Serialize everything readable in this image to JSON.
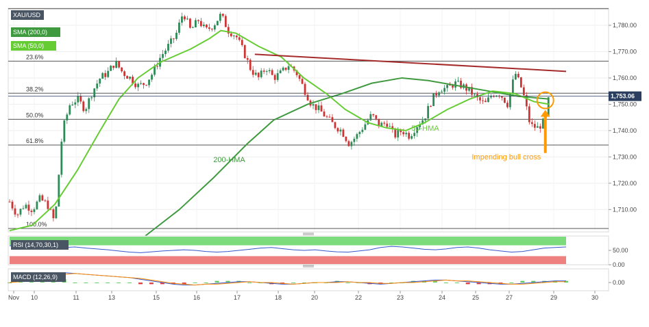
{
  "symbol": "XAU/USD",
  "indicators": {
    "sma200": "SMA (200,0)",
    "sma50": "SMA (50,0)",
    "rsi": "RSI (14,70,30,1)",
    "macd": "MACD (12,26,9)"
  },
  "colors": {
    "hma50": "#66cc33",
    "hma200": "#3f9a3f",
    "trendline": "#a52a2a",
    "candle_up": "#2e8b57",
    "candle_down": "#cc3333",
    "annotation": "#ff9900",
    "rsi_line": "#3355cc",
    "rsi_upper_band": "#7cdc7c",
    "rsi_lower_band": "#ef8080",
    "price_tag": "#2a3f5f"
  },
  "chart_data": {
    "type": "candlestick",
    "x_ticks": [
      "Nov",
      "10",
      "11",
      "13",
      "15",
      "16",
      "17",
      "18",
      "20",
      "22",
      "23",
      "24",
      "25",
      "27",
      "29",
      "30"
    ],
    "y_ticks": [
      1710.0,
      1720.0,
      1730.0,
      1740.0,
      1750.0,
      1760.0,
      1770.0,
      1780.0
    ],
    "ylim": [
      1701.5,
      1786.5
    ],
    "y_tick_labels": [
      "1,710.00",
      "1,720.00",
      "1,730.00",
      "1,740.00",
      "1,750.00",
      "1,760.00",
      "1,770.00",
      "1,780.00"
    ],
    "last_price": 1753.06,
    "last_price_label": "1,753.06",
    "fibonacci": [
      {
        "label": "100.0%",
        "price": 1702.8
      },
      {
        "label": "61.8%",
        "price": 1734.5
      },
      {
        "label": "50.0%",
        "price": 1744.3
      },
      {
        "label": "38.2%",
        "price": 1754.2
      },
      {
        "label": "23.6%",
        "price": 1766.4
      }
    ],
    "top_level": 1786.3,
    "close_path": [
      [
        0,
        1713
      ],
      [
        4,
        1708
      ],
      [
        8,
        1712
      ],
      [
        12,
        1710
      ],
      [
        16,
        1714
      ],
      [
        20,
        1712
      ],
      [
        24,
        1705
      ],
      [
        28,
        1740
      ],
      [
        32,
        1750
      ],
      [
        36,
        1752
      ],
      [
        40,
        1748
      ],
      [
        44,
        1755
      ],
      [
        48,
        1760
      ],
      [
        52,
        1762
      ],
      [
        56,
        1766
      ],
      [
        60,
        1762
      ],
      [
        64,
        1760
      ],
      [
        68,
        1757
      ],
      [
        72,
        1758
      ],
      [
        76,
        1762
      ],
      [
        80,
        1768
      ],
      [
        84,
        1772
      ],
      [
        88,
        1776
      ],
      [
        92,
        1785
      ],
      [
        96,
        1778
      ],
      [
        100,
        1782
      ],
      [
        104,
        1778
      ],
      [
        108,
        1780
      ],
      [
        112,
        1784
      ],
      [
        116,
        1778
      ],
      [
        120,
        1776
      ],
      [
        124,
        1770
      ],
      [
        128,
        1763
      ],
      [
        132,
        1760
      ],
      [
        136,
        1764
      ],
      [
        140,
        1760
      ],
      [
        144,
        1762
      ],
      [
        148,
        1765
      ],
      [
        152,
        1762
      ],
      [
        156,
        1756
      ],
      [
        160,
        1750
      ],
      [
        164,
        1748
      ],
      [
        168,
        1745
      ],
      [
        172,
        1742
      ],
      [
        176,
        1740
      ],
      [
        180,
        1735
      ],
      [
        184,
        1738
      ],
      [
        188,
        1742
      ],
      [
        192,
        1746
      ],
      [
        196,
        1742
      ],
      [
        200,
        1743
      ],
      [
        204,
        1738
      ],
      [
        208,
        1740
      ],
      [
        212,
        1738
      ],
      [
        216,
        1742
      ],
      [
        220,
        1745
      ],
      [
        224,
        1752
      ],
      [
        228,
        1756
      ],
      [
        232,
        1756
      ],
      [
        236,
        1758
      ],
      [
        240,
        1757
      ],
      [
        244,
        1755
      ],
      [
        248,
        1752
      ],
      [
        252,
        1750
      ],
      [
        256,
        1754
      ],
      [
        260,
        1754
      ],
      [
        264,
        1750
      ],
      [
        268,
        1762
      ],
      [
        272,
        1755
      ],
      [
        276,
        1742
      ],
      [
        280,
        1741
      ],
      [
        284,
        1744
      ],
      [
        286,
        1753
      ]
    ],
    "hma50": [
      [
        0,
        1702
      ],
      [
        12,
        1704
      ],
      [
        24,
        1712
      ],
      [
        36,
        1725
      ],
      [
        48,
        1740
      ],
      [
        58,
        1752
      ],
      [
        68,
        1760
      ],
      [
        80,
        1766
      ],
      [
        96,
        1771
      ],
      [
        106,
        1775
      ],
      [
        112,
        1778
      ],
      [
        120,
        1777
      ],
      [
        132,
        1772
      ],
      [
        144,
        1768
      ],
      [
        156,
        1760
      ],
      [
        168,
        1754
      ],
      [
        178,
        1748
      ],
      [
        190,
        1743
      ],
      [
        200,
        1741
      ],
      [
        210,
        1740
      ],
      [
        220,
        1743
      ],
      [
        232,
        1748
      ],
      [
        244,
        1752
      ],
      [
        256,
        1755
      ],
      [
        268,
        1754
      ],
      [
        278,
        1751
      ],
      [
        286,
        1750
      ]
    ],
    "hma200": [
      [
        72,
        1700
      ],
      [
        90,
        1710
      ],
      [
        108,
        1722
      ],
      [
        126,
        1735
      ],
      [
        140,
        1744
      ],
      [
        158,
        1750
      ],
      [
        176,
        1754
      ],
      [
        192,
        1758
      ],
      [
        208,
        1760
      ],
      [
        222,
        1759
      ],
      [
        238,
        1757
      ],
      [
        254,
        1755
      ],
      [
        270,
        1753
      ],
      [
        286,
        1752
      ]
    ],
    "trendline": {
      "start": [
        130,
        1769
      ],
      "end": [
        295,
        1762.5
      ]
    },
    "annotations": [
      {
        "label": "200-HMA",
        "x": 108,
        "y": 1728
      },
      {
        "label": "50-HMA",
        "x": 213,
        "y": 1740
      },
      {
        "label": "Impending bull cross",
        "x": 245,
        "y": 1729
      }
    ],
    "rsi": {
      "ticks": [
        50.0,
        0.0
      ],
      "tick_labels": [
        "50.00",
        "0.00"
      ],
      "upper": 70,
      "lower": 30,
      "values": [
        66,
        64,
        62,
        60,
        58,
        60,
        62,
        58,
        55,
        52,
        48,
        44,
        42,
        45,
        48,
        50,
        52,
        50,
        46,
        44,
        46,
        50,
        54,
        58,
        60,
        56,
        52,
        50,
        52,
        48,
        45,
        44,
        48,
        52,
        60,
        64,
        62,
        58,
        54,
        52,
        55,
        60,
        62,
        58,
        52,
        48,
        44,
        46,
        52,
        58,
        60,
        62
      ]
    },
    "macd": {
      "ticks": [
        0.0
      ],
      "tick_labels": [
        "0.00"
      ],
      "macd_line": [
        0,
        2,
        6,
        10,
        12,
        12,
        11,
        10,
        9,
        8,
        7,
        6,
        4,
        2,
        0,
        -2,
        -3,
        -3,
        -2,
        -1,
        0,
        1,
        1,
        0,
        -1,
        -2,
        -2,
        -1,
        0,
        0,
        1,
        1,
        0,
        -1,
        -2,
        -1,
        0,
        1,
        2,
        3,
        3,
        2,
        1,
        0,
        -1,
        -2,
        -2,
        -1,
        0,
        1,
        2,
        2
      ],
      "signal_line": [
        0,
        1,
        3,
        6,
        9,
        10,
        11,
        10,
        9,
        8,
        7,
        6,
        5,
        3,
        1,
        -1,
        -2,
        -3,
        -2,
        -2,
        -1,
        0,
        1,
        0,
        0,
        -1,
        -2,
        -1,
        0,
        0,
        0,
        1,
        0,
        0,
        -1,
        -1,
        0,
        0,
        1,
        2,
        3,
        2,
        2,
        1,
        0,
        -1,
        -2,
        -2,
        -1,
        0,
        1,
        1
      ]
    }
  }
}
